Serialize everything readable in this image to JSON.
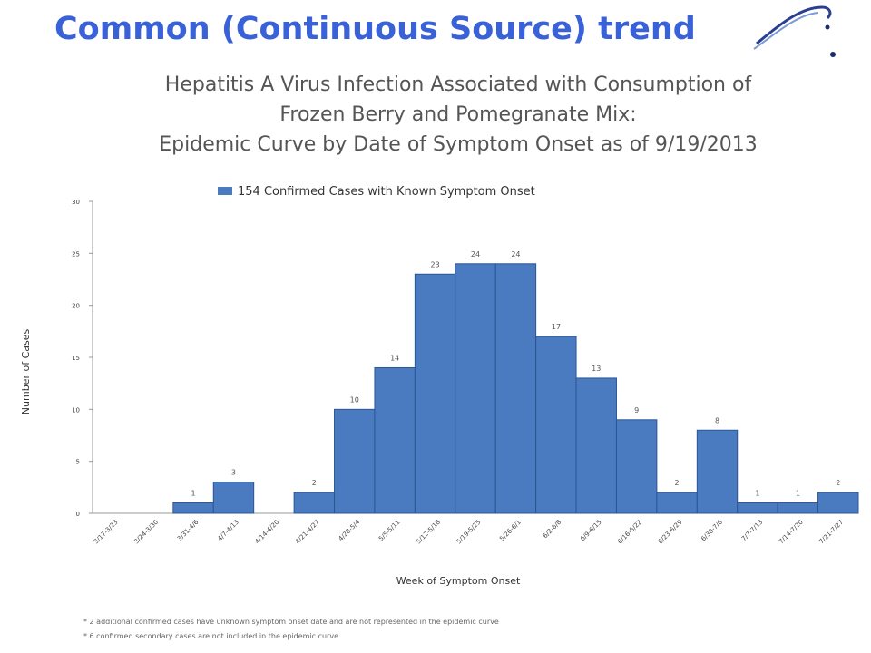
{
  "slide": {
    "title": "Common (Continuous Source) trend"
  },
  "chart_data": {
    "type": "bar",
    "title_lines": [
      "Hepatitis A Virus Infection Associated with Consumption of",
      "Frozen Berry and Pomegranate Mix:",
      "Epidemic Curve by Date of Symptom Onset  as of 9/19/2013"
    ],
    "legend": "154 Confirmed Cases with Known Symptom Onset",
    "xlabel": "Week of Symptom Onset",
    "ylabel": "Number of Cases",
    "ylim": [
      0,
      30
    ],
    "yticks": [
      0,
      5,
      10,
      15,
      20,
      25,
      30
    ],
    "categories": [
      "3/17-3/23",
      "3/24-3/30",
      "3/31-4/6",
      "4/7-4/13",
      "4/14-4/20",
      "4/21-4/27",
      "4/28-5/4",
      "5/5-5/11",
      "5/12-5/18",
      "5/19-5/25",
      "5/26-6/1",
      "6/2-6/8",
      "6/9-6/15",
      "6/16-6/22",
      "6/23-6/29",
      "6/30-7/6",
      "7/7-7/13",
      "7/14-7/20",
      "7/21-7/27"
    ],
    "values": [
      0,
      0,
      1,
      3,
      0,
      2,
      10,
      14,
      23,
      24,
      24,
      17,
      13,
      9,
      2,
      8,
      1,
      1,
      2
    ],
    "legend_color": "#4a7bc0",
    "grid": false,
    "footnotes": [
      "* 2 additional confirmed cases have unknown symptom onset date and are not represented in the epidemic curve",
      "* 6 confirmed secondary cases are not included in the epidemic curve"
    ]
  }
}
